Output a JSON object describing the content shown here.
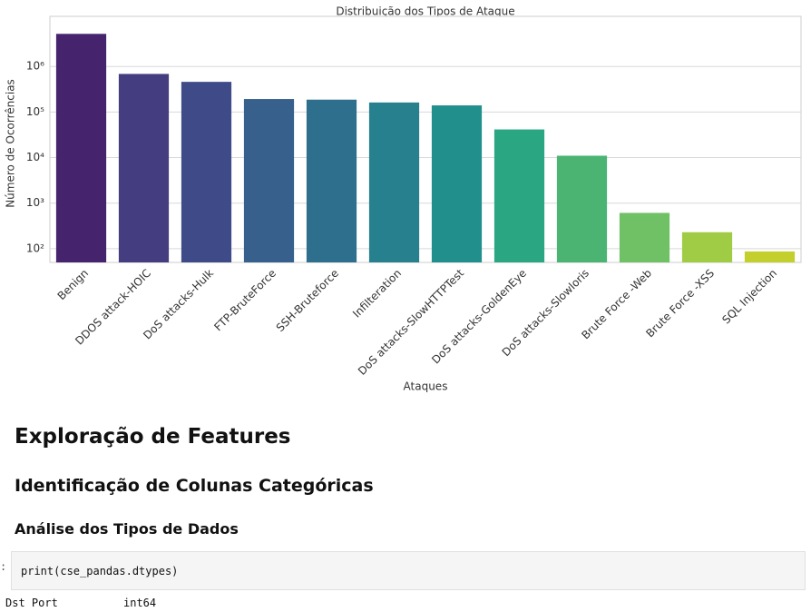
{
  "chart_data": {
    "type": "bar",
    "title": "Distribuição dos Tipos de Ataque",
    "x_label": "Ataques",
    "y_label": "Número de Ocorrências",
    "categories": [
      "Benign",
      "DDOS attack-HOIC",
      "DoS attacks-Hulk",
      "FTP-BruteForce",
      "SSH-Bruteforce",
      "Infilteration",
      "DoS attacks-SlowHTTPTest",
      "DoS attacks-GoldenEye",
      "DoS attacks-Slowloris",
      "Brute Force -Web",
      "Brute Force -XSS",
      "SQL Injection"
    ],
    "values": [
      5200000,
      686000,
      460000,
      193000,
      187000,
      162000,
      140000,
      41500,
      11000,
      611,
      230,
      87
    ],
    "colors": [
      "#46246d",
      "#443d80",
      "#3f4b89",
      "#37608d",
      "#2f6f8e",
      "#27808e",
      "#21908c",
      "#2aa683",
      "#4cb472",
      "#70c065",
      "#a0cb45",
      "#c3cf2c"
    ],
    "log_scale": true,
    "grid": true,
    "ylim": [
      50,
      12600000
    ],
    "yticks": [
      {
        "value": 100,
        "label": "10²"
      },
      {
        "value": 1000,
        "label": "10³"
      },
      {
        "value": 10000,
        "label": "10⁴"
      },
      {
        "value": 100000,
        "label": "10⁵"
      },
      {
        "value": 1000000,
        "label": "10⁶"
      }
    ]
  },
  "headings": [
    "Exploração de Features",
    "Identificação de Colunas Categóricas",
    "Análise dos Tipos de Dados"
  ],
  "code_cell": {
    "prompt": ":",
    "code": "print(cse_pandas.dtypes)"
  },
  "output": {
    "column": "Dst Port",
    "dtype": "int64"
  }
}
